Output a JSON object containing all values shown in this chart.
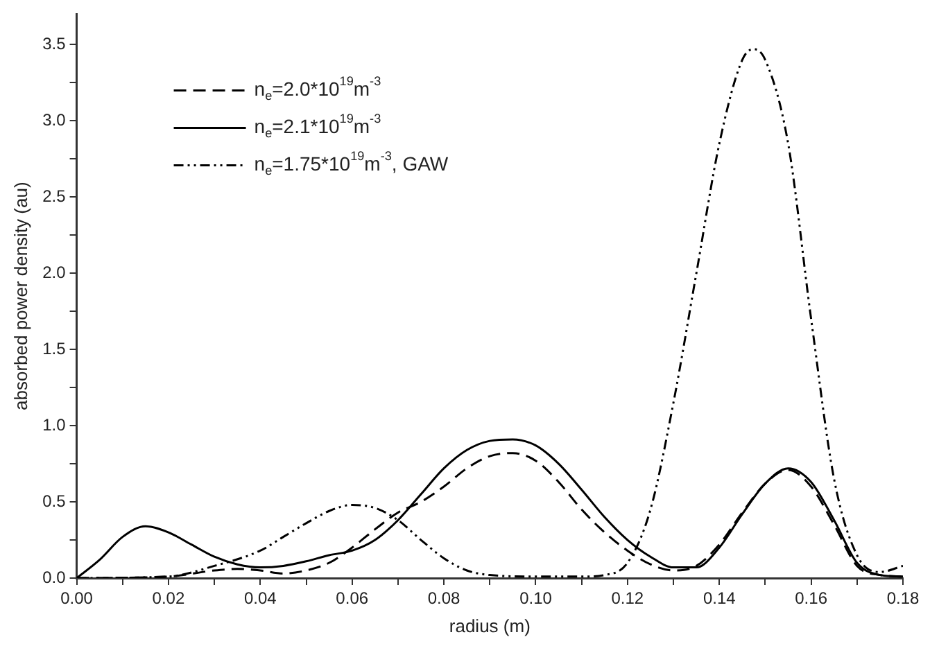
{
  "chart_data": {
    "type": "line",
    "xlabel": "radius (m)",
    "ylabel": "absorbed power density (au)",
    "xlim": [
      0,
      0.18
    ],
    "ylim": [
      0,
      3.7
    ],
    "xticks": [
      {
        "value": 0,
        "label": "0.00"
      },
      {
        "value": 0.01,
        "label": null
      },
      {
        "value": 0.02,
        "label": "0.02"
      },
      {
        "value": 0.03,
        "label": null
      },
      {
        "value": 0.04,
        "label": "0.04"
      },
      {
        "value": 0.05,
        "label": null
      },
      {
        "value": 0.06,
        "label": "0.06"
      },
      {
        "value": 0.07,
        "label": null
      },
      {
        "value": 0.08,
        "label": "0.08"
      },
      {
        "value": 0.09,
        "label": null
      },
      {
        "value": 0.1,
        "label": "0.10"
      },
      {
        "value": 0.11,
        "label": null
      },
      {
        "value": 0.12,
        "label": "0.12"
      },
      {
        "value": 0.13,
        "label": null
      },
      {
        "value": 0.14,
        "label": "0.14"
      },
      {
        "value": 0.15,
        "label": null
      },
      {
        "value": 0.16,
        "label": "0.16"
      },
      {
        "value": 0.17,
        "label": null
      },
      {
        "value": 0.18,
        "label": "0.18"
      }
    ],
    "yticks": [
      {
        "value": 0,
        "label": "0.0"
      },
      {
        "value": 0.25,
        "label": null
      },
      {
        "value": 0.5,
        "label": "0.5"
      },
      {
        "value": 0.75,
        "label": null
      },
      {
        "value": 1,
        "label": "1.0"
      },
      {
        "value": 1.25,
        "label": null
      },
      {
        "value": 1.5,
        "label": "1.5"
      },
      {
        "value": 1.75,
        "label": null
      },
      {
        "value": 2,
        "label": "2.0"
      },
      {
        "value": 2.25,
        "label": null
      },
      {
        "value": 2.5,
        "label": "2.5"
      },
      {
        "value": 2.75,
        "label": null
      },
      {
        "value": 3,
        "label": "3.0"
      },
      {
        "value": 3.25,
        "label": null
      },
      {
        "value": 3.5,
        "label": "3.5"
      }
    ],
    "grid": false,
    "legend": "top left",
    "marker": "none",
    "series": [
      {
        "name": "n$_{e}$=2.0*10$^{19}$m$^{-3}$",
        "color": "#000000",
        "line_style": "dashed",
        "x": [
          0,
          0.02,
          0.03,
          0.035,
          0.04,
          0.045,
          0.05,
          0.055,
          0.06,
          0.065,
          0.07,
          0.075,
          0.08,
          0.085,
          0.09,
          0.095,
          0.1,
          0.105,
          0.11,
          0.115,
          0.12,
          0.125,
          0.13,
          0.135,
          0.14,
          0.145,
          0.15,
          0.155,
          0.16,
          0.165,
          0.17,
          0.175,
          0.18
        ],
        "values": [
          0,
          0.01,
          0.05,
          0.06,
          0.05,
          0.03,
          0.05,
          0.1,
          0.2,
          0.32,
          0.43,
          0.5,
          0.6,
          0.72,
          0.8,
          0.82,
          0.77,
          0.63,
          0.45,
          0.3,
          0.18,
          0.09,
          0.05,
          0.08,
          0.22,
          0.43,
          0.62,
          0.71,
          0.6,
          0.35,
          0.08,
          0.02,
          0.01
        ]
      },
      {
        "name": "n$_{e}$=2.1*10$^{19}$m$^{-3}$",
        "color": "#000000",
        "line_style": "solid",
        "x": [
          0,
          0.005,
          0.01,
          0.015,
          0.02,
          0.025,
          0.03,
          0.035,
          0.04,
          0.045,
          0.05,
          0.055,
          0.06,
          0.065,
          0.07,
          0.075,
          0.08,
          0.085,
          0.09,
          0.095,
          0.1,
          0.105,
          0.11,
          0.115,
          0.12,
          0.125,
          0.13,
          0.135,
          0.14,
          0.145,
          0.15,
          0.155,
          0.16,
          0.165,
          0.17,
          0.175,
          0.18
        ],
        "values": [
          0,
          0.12,
          0.27,
          0.34,
          0.3,
          0.22,
          0.14,
          0.09,
          0.07,
          0.08,
          0.11,
          0.15,
          0.18,
          0.25,
          0.38,
          0.55,
          0.72,
          0.84,
          0.9,
          0.91,
          0.87,
          0.75,
          0.58,
          0.4,
          0.25,
          0.14,
          0.07,
          0.07,
          0.2,
          0.42,
          0.62,
          0.72,
          0.63,
          0.38,
          0.1,
          0.02,
          0.01
        ]
      },
      {
        "name": "n$_{e}$=1.75*10$^{19}$m$^{-3}$, GAW",
        "color": "#000000",
        "line_style": "dotted",
        "x": [
          0,
          0.02,
          0.03,
          0.04,
          0.045,
          0.05,
          0.055,
          0.06,
          0.065,
          0.07,
          0.075,
          0.08,
          0.085,
          0.09,
          0.1,
          0.11,
          0.115,
          0.12,
          0.125,
          0.13,
          0.135,
          0.14,
          0.145,
          0.1475,
          0.15,
          0.155,
          0.16,
          0.165,
          0.17,
          0.175,
          0.18
        ],
        "values": [
          0,
          0.01,
          0.08,
          0.18,
          0.27,
          0.36,
          0.44,
          0.48,
          0.46,
          0.38,
          0.25,
          0.13,
          0.05,
          0.02,
          0.01,
          0.01,
          0.02,
          0.1,
          0.45,
          1.15,
          2.0,
          2.85,
          3.4,
          3.47,
          3.4,
          2.85,
          1.7,
          0.65,
          0.15,
          0.04,
          0.08
        ]
      }
    ]
  }
}
